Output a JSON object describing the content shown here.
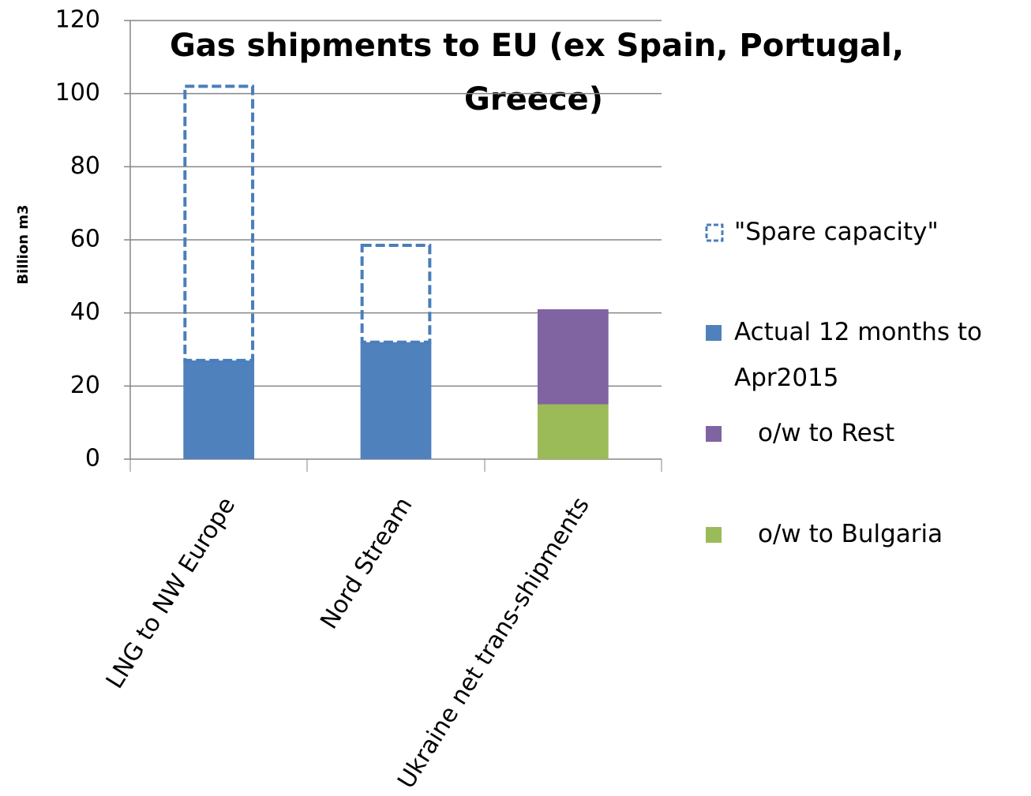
{
  "chart_data": {
    "type": "stacked_bar",
    "title": [
      "Gas shipments to EU (ex Spain, Portugal,",
      "Greece)"
    ],
    "y_label": "Billion m3",
    "categories": [
      "LNG to NW Europe",
      "Nord Stream",
      "Ukraine net trans-shipments"
    ],
    "series": [
      {
        "name": "\"Spare capacity\"",
        "color": "#4a7ebb",
        "style": "dashed",
        "values": [
          75,
          26.5,
          null
        ]
      },
      {
        "name": "Actual 12 months to Apr2015",
        "color": "#4f81bd",
        "values": [
          27,
          32,
          null
        ]
      },
      {
        "name": "o/w to Rest",
        "color": "#8064a2",
        "values": [
          null,
          null,
          26
        ]
      },
      {
        "name": "o/w to Bulgaria",
        "color": "#9bbb59",
        "values": [
          null,
          null,
          15
        ]
      }
    ],
    "stack_order": [
      1,
      3,
      2,
      0
    ],
    "ylim": [
      0,
      120
    ],
    "yticks": [
      0,
      20,
      40,
      60,
      80,
      100,
      120
    ],
    "grid": true,
    "legend": "right"
  }
}
